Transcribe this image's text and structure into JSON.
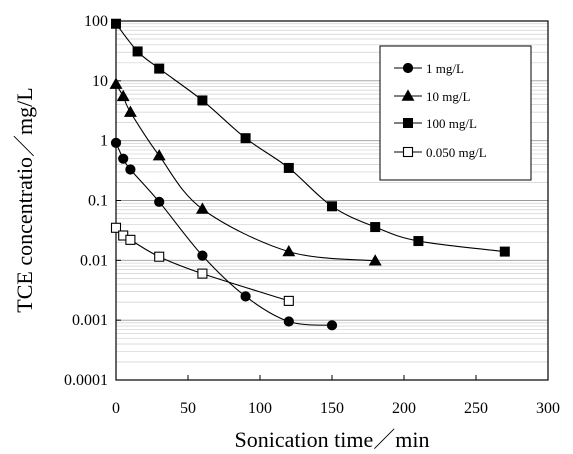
{
  "chart_data": {
    "type": "line",
    "title": "",
    "xlabel": "Sonication time／min",
    "ylabel": "TCE concentratio／mg/L",
    "xlim": [
      0,
      300
    ],
    "ylim": [
      0.0001,
      100
    ],
    "y_scale": "log",
    "x_ticks": [
      "0",
      "50",
      "100",
      "150",
      "200",
      "250",
      "300"
    ],
    "y_ticks": [
      "0.0001",
      "0.001",
      "0.01",
      "0.1",
      "1",
      "10",
      "100"
    ],
    "grid": "horizontal",
    "legend_position": "top-right",
    "series": [
      {
        "name": "1 mg/L",
        "marker": "circle-filled",
        "x": [
          0,
          5,
          10,
          30,
          60,
          90,
          120,
          150
        ],
        "y": [
          0.92,
          0.5,
          0.33,
          0.095,
          0.012,
          0.0025,
          0.00095,
          0.00082
        ]
      },
      {
        "name": "10 mg/L",
        "marker": "triangle-filled",
        "x": [
          0,
          5,
          10,
          30,
          60,
          120,
          180
        ],
        "y": [
          8.8,
          5.5,
          3.0,
          0.56,
          0.072,
          0.014,
          0.0098
        ]
      },
      {
        "name": "100 mg/L",
        "marker": "square-filled",
        "x": [
          0,
          15,
          30,
          60,
          90,
          120,
          150,
          180,
          210,
          270
        ],
        "y": [
          90,
          31,
          16,
          4.7,
          1.1,
          0.35,
          0.08,
          0.036,
          0.021,
          0.014
        ]
      },
      {
        "name": "0.050 mg/L",
        "marker": "square-open",
        "x": [
          0,
          5,
          10,
          30,
          60,
          120
        ],
        "y": [
          0.035,
          0.026,
          0.022,
          0.0115,
          0.006,
          0.0021
        ]
      }
    ]
  }
}
